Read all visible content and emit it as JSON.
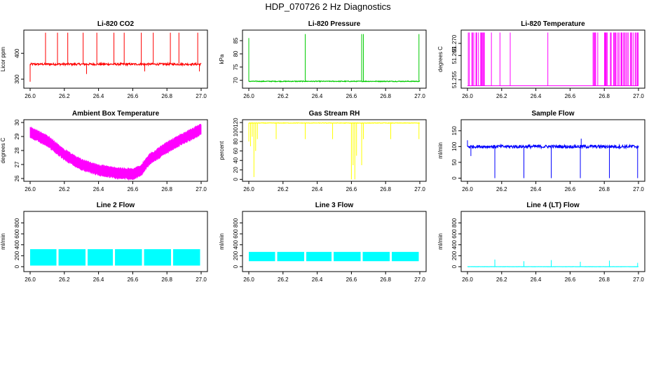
{
  "page": {
    "title": "HDP_070726  2 Hz Diagnostics"
  },
  "chart_data": [
    {
      "type": "line",
      "title": "Li-820 CO2",
      "ylabel": "Licor ppm",
      "color": "#ff0000",
      "xlim": [
        26.0,
        27.0
      ],
      "xticks": [
        "26.0",
        "26.2",
        "26.4",
        "26.6",
        "26.8",
        "27.0"
      ],
      "ylim": [
        265,
        490
      ],
      "yticks": [
        "300",
        "400"
      ],
      "ytick_values": [
        300,
        400
      ],
      "series": [
        {
          "name": "Li-820 CO2",
          "baseline": 358,
          "noise": 4,
          "spikes": [
            {
              "x": 26.0,
              "y": 290
            },
            {
              "x": 26.09,
              "y": 480
            },
            {
              "x": 26.16,
              "y": 480
            },
            {
              "x": 26.22,
              "y": 480
            },
            {
              "x": 26.31,
              "y": 480
            },
            {
              "x": 26.33,
              "y": 320
            },
            {
              "x": 26.39,
              "y": 480
            },
            {
              "x": 26.49,
              "y": 480
            },
            {
              "x": 26.55,
              "y": 480
            },
            {
              "x": 26.65,
              "y": 480
            },
            {
              "x": 26.67,
              "y": 330
            },
            {
              "x": 26.72,
              "y": 480
            },
            {
              "x": 26.82,
              "y": 480
            },
            {
              "x": 26.87,
              "y": 480
            },
            {
              "x": 26.98,
              "y": 480
            },
            {
              "x": 26.99,
              "y": 330
            }
          ]
        }
      ]
    },
    {
      "type": "line",
      "title": "Li-820 Pressure",
      "ylabel": "kPa",
      "color": "#00cc00",
      "xlim": [
        26.0,
        27.0
      ],
      "xticks": [
        "26.0",
        "26.2",
        "26.4",
        "26.6",
        "26.8",
        "27.0"
      ],
      "ylim": [
        67,
        89
      ],
      "yticks": [
        "70",
        "75",
        "80",
        "85"
      ],
      "ytick_values": [
        70,
        75,
        80,
        85
      ],
      "series": [
        {
          "name": "Li-820 Pressure",
          "baseline": 69.6,
          "noise": 0.15,
          "spikes": [
            {
              "x": 26.0,
              "y": 86
            },
            {
              "x": 26.33,
              "y": 87.5
            },
            {
              "x": 26.66,
              "y": 87.5
            },
            {
              "x": 26.67,
              "y": 87.5
            },
            {
              "x": 26.995,
              "y": 87.5
            }
          ]
        }
      ]
    },
    {
      "type": "line",
      "title": "Li-820 Temperature",
      "ylabel": "degrees C",
      "color": "#ff00ff",
      "xlim": [
        26.0,
        27.0
      ],
      "xticks": [
        "26.0",
        "26.2",
        "26.4",
        "26.6",
        "26.8",
        "27.0"
      ],
      "ylim": [
        51.2515,
        51.2755
      ],
      "yticks": [
        "51.255",
        "51.265",
        "51.270"
      ],
      "ytick_values": [
        51.255,
        51.265,
        51.27
      ],
      "series": [
        {
          "name": "Li-820 Temperature",
          "low": 51.2525,
          "high": 51.2745,
          "toggle_ranges": [
            [
              26.0,
              26.1
            ],
            [
              26.73,
              27.0
            ]
          ],
          "single_spikes": [
            26.14,
            26.19,
            26.25,
            26.47
          ]
        }
      ]
    },
    {
      "type": "line",
      "title": "Ambient Box Temperature",
      "ylabel": "degrees C",
      "color": "#ff00ff",
      "xlim": [
        26.0,
        27.0
      ],
      "xticks": [
        "26.0",
        "26.2",
        "26.4",
        "26.6",
        "26.8",
        "27.0"
      ],
      "ylim": [
        25.8,
        30.2
      ],
      "yticks": [
        "26",
        "27",
        "28",
        "29",
        "30"
      ],
      "ytick_values": [
        26,
        27,
        28,
        29,
        30
      ],
      "series": [
        {
          "name": "Ambient Box Temperature",
          "band": 0.7,
          "x": [
            26.0,
            26.1,
            26.2,
            26.3,
            26.4,
            26.5,
            26.6,
            26.65,
            26.7,
            26.8,
            26.9,
            27.0
          ],
          "y": [
            29.3,
            28.7,
            27.7,
            27.0,
            26.6,
            26.4,
            26.3,
            26.6,
            27.4,
            28.2,
            28.9,
            29.5
          ]
        }
      ]
    },
    {
      "type": "line",
      "title": "Gas Stream RH",
      "ylabel": "percent",
      "color": "#ffff00",
      "xlim": [
        26.0,
        27.0
      ],
      "xticks": [
        "26.0",
        "26.2",
        "26.4",
        "26.6",
        "26.8",
        "27.0"
      ],
      "ylim": [
        -4,
        126
      ],
      "yticks": [
        "0",
        "20",
        "40",
        "60",
        "80",
        "100",
        "120"
      ],
      "ytick_values": [
        0,
        20,
        40,
        60,
        80,
        100,
        120
      ],
      "series": [
        {
          "name": "Gas Stream RH",
          "baseline": 119,
          "noise": 0.5,
          "dips": [
            {
              "x": 26.0,
              "y": 80
            },
            {
              "x": 26.01,
              "y": 70
            },
            {
              "x": 26.02,
              "y": 90
            },
            {
              "x": 26.03,
              "y": 5
            },
            {
              "x": 26.04,
              "y": 60
            },
            {
              "x": 26.05,
              "y": 85
            },
            {
              "x": 26.16,
              "y": 85
            },
            {
              "x": 26.33,
              "y": 85
            },
            {
              "x": 26.49,
              "y": 85
            },
            {
              "x": 26.6,
              "y": 0
            },
            {
              "x": 26.61,
              "y": 30
            },
            {
              "x": 26.62,
              "y": 0
            },
            {
              "x": 26.63,
              "y": 50
            },
            {
              "x": 26.66,
              "y": 30
            },
            {
              "x": 26.67,
              "y": 85
            },
            {
              "x": 26.83,
              "y": 85
            },
            {
              "x": 26.995,
              "y": 85
            }
          ]
        }
      ]
    },
    {
      "type": "line",
      "title": "Sample Flow",
      "ylabel": "ml/min",
      "color": "#0000ff",
      "xlim": [
        26.0,
        27.0
      ],
      "xticks": [
        "26.0",
        "26.2",
        "26.4",
        "26.6",
        "26.8",
        "27.0"
      ],
      "ylim": [
        -10,
        185
      ],
      "yticks": [
        "0",
        "50",
        "100",
        "150"
      ],
      "ytick_values": [
        0,
        50,
        100,
        150
      ],
      "series": [
        {
          "name": "Sample Flow",
          "baseline": 100,
          "noise": 5,
          "spikes": [
            {
              "x": 26.0,
              "y": 120
            },
            {
              "x": 26.02,
              "y": 70
            },
            {
              "x": 26.16,
              "y": 0
            },
            {
              "x": 26.33,
              "y": 0
            },
            {
              "x": 26.49,
              "y": 0
            },
            {
              "x": 26.66,
              "y": 0
            },
            {
              "x": 26.665,
              "y": 125
            },
            {
              "x": 26.83,
              "y": 0
            },
            {
              "x": 26.995,
              "y": 0
            }
          ]
        }
      ]
    },
    {
      "type": "line",
      "title": "Line 2 Flow",
      "ylabel": "ml/min",
      "color": "#00ffff",
      "xlim": [
        26.0,
        27.0
      ],
      "xticks": [
        "26.0",
        "26.2",
        "26.4",
        "26.6",
        "26.8",
        "27.0"
      ],
      "ylim": [
        -90,
        1010
      ],
      "yticks": [
        "0",
        "200",
        "400",
        "600",
        "800"
      ],
      "ytick_values": [
        0,
        200,
        400,
        600,
        800
      ],
      "series": [
        {
          "name": "Line 2 Flow",
          "low": 20,
          "high": 320,
          "gaps": [
            26.16,
            26.33,
            26.49,
            26.66,
            26.83
          ]
        }
      ]
    },
    {
      "type": "line",
      "title": "Line 3 Flow",
      "ylabel": "ml/min",
      "color": "#00ffff",
      "xlim": [
        26.0,
        27.0
      ],
      "xticks": [
        "26.0",
        "26.2",
        "26.4",
        "26.6",
        "26.8",
        "27.0"
      ],
      "ylim": [
        -90,
        1010
      ],
      "yticks": [
        "0",
        "200",
        "400",
        "600",
        "800"
      ],
      "ytick_values": [
        0,
        200,
        400,
        600,
        800
      ],
      "series": [
        {
          "name": "Line 3 Flow",
          "low": 100,
          "high": 270,
          "gaps": [
            26.16,
            26.33,
            26.49,
            26.66,
            26.83
          ]
        }
      ]
    },
    {
      "type": "line",
      "title": "Line 4 (LT) Flow",
      "ylabel": "ml/min",
      "color": "#00ffff",
      "xlim": [
        26.0,
        27.0
      ],
      "xticks": [
        "26.0",
        "26.2",
        "26.4",
        "26.6",
        "26.8",
        "27.0"
      ],
      "ylim": [
        -90,
        1010
      ],
      "yticks": [
        "0",
        "200",
        "400",
        "600",
        "800"
      ],
      "ytick_values": [
        0,
        200,
        400,
        600,
        800
      ],
      "series": [
        {
          "name": "Line 4 (LT) Flow",
          "baseline": 0,
          "noise": 1,
          "spikes": [
            {
              "x": 26.16,
              "y": 130
            },
            {
              "x": 26.33,
              "y": 100
            },
            {
              "x": 26.49,
              "y": 120
            },
            {
              "x": 26.66,
              "y": 90
            },
            {
              "x": 26.83,
              "y": 110
            },
            {
              "x": 26.995,
              "y": 70
            }
          ]
        }
      ]
    }
  ]
}
